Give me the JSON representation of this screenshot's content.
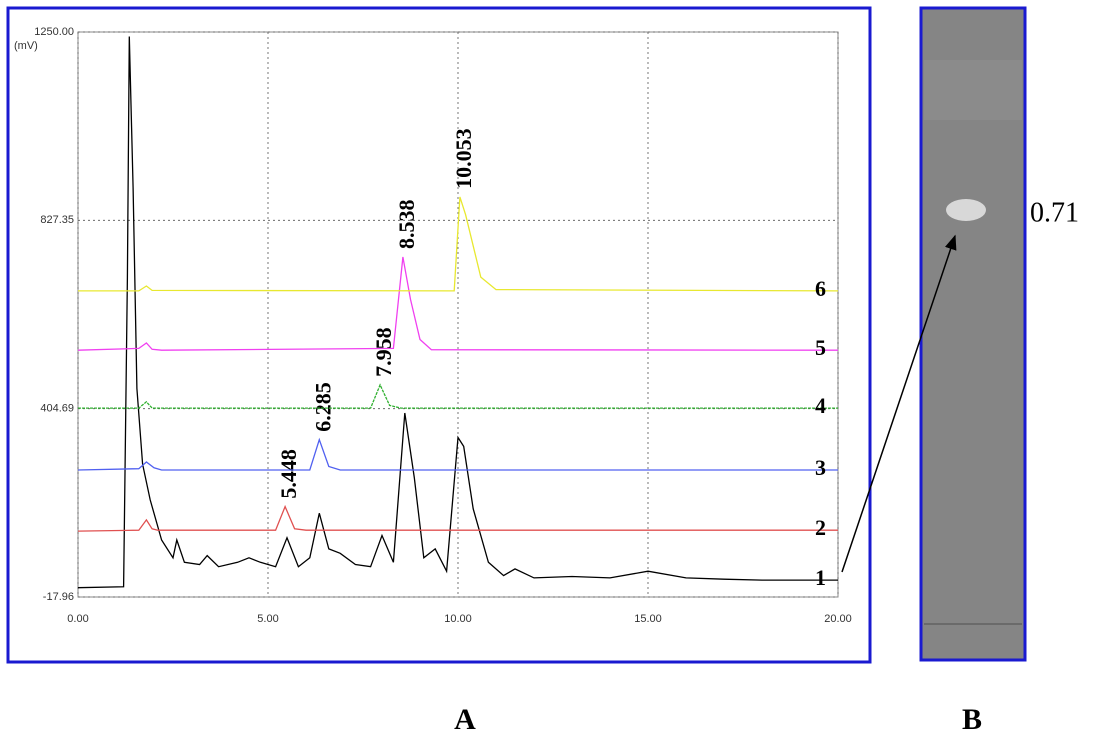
{
  "chart_data": {
    "type": "line",
    "y_label": "(mV)",
    "xlim": [
      0,
      20
    ],
    "ylim": [
      -17.96,
      1250
    ],
    "xticks": [
      {
        "value": 0,
        "label": "0.00"
      },
      {
        "value": 5,
        "label": "5.00"
      },
      {
        "value": 10,
        "label": "10.00"
      },
      {
        "value": 15,
        "label": "15.00"
      },
      {
        "value": 20,
        "label": "20.00"
      }
    ],
    "yticks": [
      -17.96,
      404.69,
      827.35,
      {
        "value": 1250,
        "label": "1250.00"
      }
    ],
    "grid": true,
    "series": [
      {
        "name": "1",
        "color": "#000000",
        "x": [
          0,
          1.2,
          1.3,
          1.35,
          1.45,
          1.55,
          1.7,
          1.9,
          2.2,
          2.5,
          2.6,
          2.8,
          3.2,
          3.4,
          3.7,
          4.2,
          4.5,
          4.8,
          5.2,
          5.5,
          5.8,
          6.1,
          6.35,
          6.6,
          6.9,
          7.3,
          7.7,
          8.0,
          8.3,
          8.6,
          8.85,
          9.1,
          9.4,
          9.7,
          10.0,
          10.15,
          10.4,
          10.8,
          11.2,
          11.5,
          12,
          13,
          14,
          15,
          16,
          17,
          18,
          20
        ],
        "values": [
          3,
          5,
          700,
          1240,
          900,
          450,
          280,
          200,
          110,
          70,
          110,
          60,
          55,
          75,
          50,
          60,
          70,
          60,
          50,
          115,
          50,
          70,
          170,
          90,
          80,
          55,
          50,
          120,
          60,
          395,
          250,
          70,
          90,
          40,
          340,
          320,
          180,
          60,
          30,
          45,
          25,
          28,
          25,
          40,
          25,
          22,
          20,
          20
        ]
      },
      {
        "name": "2",
        "color": "#e05050",
        "peak_label": "5.448",
        "x": [
          0,
          1.6,
          1.8,
          1.95,
          2.1,
          5.2,
          5.45,
          5.7,
          6.0,
          20
        ],
        "values": [
          130,
          132,
          155,
          135,
          132,
          132,
          185,
          135,
          132,
          132
        ]
      },
      {
        "name": "3",
        "color": "#5060f0",
        "peak_label": "6.285",
        "x": [
          0,
          1.6,
          1.8,
          2.0,
          2.2,
          6.1,
          6.35,
          6.6,
          6.9,
          20
        ],
        "values": [
          267,
          270,
          285,
          272,
          267,
          267,
          335,
          275,
          267,
          267
        ]
      },
      {
        "name": "4",
        "color": "#30b030",
        "peak_label": "7.958",
        "x": [
          0,
          1.6,
          1.8,
          1.95,
          7.7,
          7.95,
          8.2,
          8.5,
          20
        ],
        "values": [
          406,
          406,
          420,
          406,
          406,
          458,
          412,
          406,
          406
        ]
      },
      {
        "name": "5",
        "color": "#f040f0",
        "peak_label": "8.538",
        "x": [
          0,
          1.6,
          1.8,
          1.95,
          2.2,
          8.3,
          8.55,
          8.75,
          9.0,
          9.3,
          20
        ],
        "values": [
          536,
          540,
          552,
          538,
          536,
          540,
          745,
          650,
          560,
          537,
          536
        ]
      },
      {
        "name": "6",
        "color": "#e8e830",
        "peak_label": "10.053",
        "x": [
          0,
          1.6,
          1.8,
          1.95,
          9.9,
          10.05,
          10.2,
          10.6,
          11.0,
          20
        ],
        "values": [
          669,
          669,
          680,
          670,
          669,
          880,
          840,
          700,
          672,
          669
        ]
      }
    ],
    "rf_label": "0.71",
    "panels": [
      "A",
      "B"
    ]
  }
}
